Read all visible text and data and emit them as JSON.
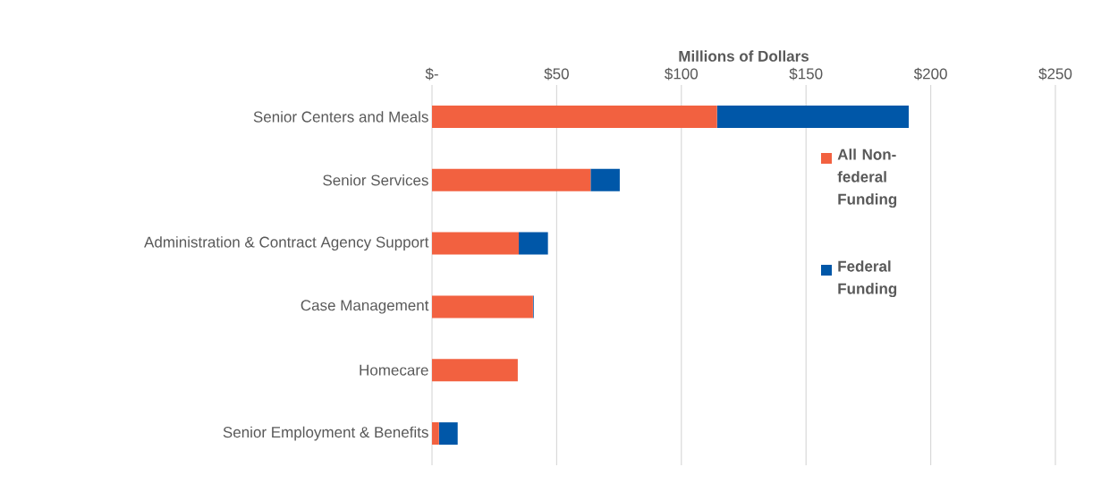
{
  "chart_data": {
    "type": "bar",
    "orientation": "horizontal",
    "stacked": true,
    "xlabel": "Millions of Dollars",
    "categories": [
      "Senior Centers and Meals",
      "Senior Services",
      "Administration & Contract Agency Support",
      "Case Management",
      "Homecare",
      "Senior Employment & Benefits"
    ],
    "series": [
      {
        "name": "All Non-federal Funding",
        "color": "#f26140",
        "values": [
          114.3,
          63.6,
          34.8,
          40.5,
          34.4,
          2.8
        ]
      },
      {
        "name": "Federal Funding",
        "color": "#0057a8",
        "values": [
          76.9,
          11.7,
          11.7,
          0.3,
          0,
          7.5
        ]
      }
    ],
    "xlim": [
      0,
      250
    ],
    "xticks": [
      {
        "value": 0,
        "label": "$-"
      },
      {
        "value": 50,
        "label": "$50"
      },
      {
        "value": 100,
        "label": "$100"
      },
      {
        "value": 150,
        "label": "$150"
      },
      {
        "value": 200,
        "label": "$200"
      },
      {
        "value": 250,
        "label": "$250"
      }
    ],
    "grid": "x",
    "legend": "right"
  }
}
